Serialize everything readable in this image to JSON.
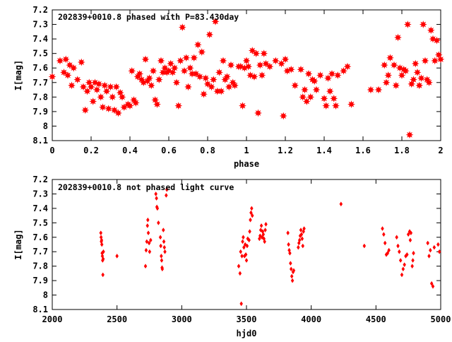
{
  "chart_data": [
    {
      "type": "scatter",
      "title": "202839+0010.8 phased with P=83.430day",
      "xlabel": "phase",
      "ylabel": "I[mag]",
      "xlim": [
        0,
        2
      ],
      "ylim": [
        7.2,
        8.1
      ],
      "y_inverted": true,
      "xticks": [
        "0",
        "0.2",
        "0.4",
        "0.6",
        "0.8",
        "1",
        "1.2",
        "1.4",
        "1.6",
        "1.8",
        "2"
      ],
      "yticks": [
        "7.2",
        "7.3",
        "7.4",
        "7.5",
        "7.6",
        "7.7",
        "7.8",
        "7.9",
        "8",
        "8.1"
      ],
      "grid": false,
      "marker": "star",
      "marker_color": "#ff0000",
      "points": [
        [
          0.0,
          7.66
        ],
        [
          0.04,
          7.55
        ],
        [
          0.06,
          7.63
        ],
        [
          0.07,
          7.54
        ],
        [
          0.08,
          7.65
        ],
        [
          0.09,
          7.58
        ],
        [
          0.1,
          7.72
        ],
        [
          0.11,
          7.6
        ],
        [
          0.13,
          7.68
        ],
        [
          0.15,
          7.56
        ],
        [
          0.16,
          7.73
        ],
        [
          0.17,
          7.89
        ],
        [
          0.18,
          7.76
        ],
        [
          0.19,
          7.7
        ],
        [
          0.2,
          7.73
        ],
        [
          0.21,
          7.83
        ],
        [
          0.22,
          7.7
        ],
        [
          0.23,
          7.75
        ],
        [
          0.24,
          7.71
        ],
        [
          0.25,
          7.8
        ],
        [
          0.26,
          7.87
        ],
        [
          0.27,
          7.72
        ],
        [
          0.28,
          7.76
        ],
        [
          0.29,
          7.88
        ],
        [
          0.3,
          7.73
        ],
        [
          0.31,
          7.8
        ],
        [
          0.32,
          7.89
        ],
        [
          0.33,
          7.73
        ],
        [
          0.34,
          7.91
        ],
        [
          0.35,
          7.77
        ],
        [
          0.36,
          7.8
        ],
        [
          0.37,
          7.87
        ],
        [
          0.39,
          7.85
        ],
        [
          0.4,
          7.86
        ],
        [
          0.41,
          7.62
        ],
        [
          0.42,
          7.82
        ],
        [
          0.43,
          7.84
        ],
        [
          0.44,
          7.66
        ],
        [
          0.45,
          7.64
        ],
        [
          0.46,
          7.68
        ],
        [
          0.47,
          7.7
        ],
        [
          0.48,
          7.54
        ],
        [
          0.49,
          7.69
        ],
        [
          0.5,
          7.67
        ],
        [
          0.51,
          7.72
        ],
        [
          0.52,
          7.62
        ],
        [
          0.53,
          7.82
        ],
        [
          0.54,
          7.85
        ],
        [
          0.55,
          7.68
        ],
        [
          0.56,
          7.55
        ],
        [
          0.57,
          7.63
        ],
        [
          0.58,
          7.6
        ],
        [
          0.59,
          7.63
        ],
        [
          0.6,
          7.62
        ],
        [
          0.61,
          7.57
        ],
        [
          0.62,
          7.63
        ],
        [
          0.63,
          7.6
        ],
        [
          0.64,
          7.7
        ],
        [
          0.65,
          7.86
        ],
        [
          0.66,
          7.55
        ],
        [
          0.67,
          7.32
        ],
        [
          0.68,
          7.62
        ],
        [
          0.69,
          7.53
        ],
        [
          0.7,
          7.73
        ],
        [
          0.71,
          7.6
        ],
        [
          0.72,
          7.64
        ],
        [
          0.73,
          7.53
        ],
        [
          0.74,
          7.64
        ],
        [
          0.75,
          7.44
        ],
        [
          0.76,
          7.66
        ],
        [
          0.77,
          7.49
        ],
        [
          0.78,
          7.78
        ],
        [
          0.79,
          7.67
        ],
        [
          0.8,
          7.71
        ],
        [
          0.81,
          7.37
        ],
        [
          0.82,
          7.73
        ],
        [
          0.83,
          7.68
        ],
        [
          0.84,
          7.28
        ],
        [
          0.85,
          7.76
        ],
        [
          0.86,
          7.63
        ],
        [
          0.87,
          7.76
        ],
        [
          0.88,
          7.55
        ],
        [
          0.89,
          7.68
        ],
        [
          0.9,
          7.66
        ],
        [
          0.91,
          7.73
        ],
        [
          0.92,
          7.58
        ],
        [
          0.93,
          7.7
        ],
        [
          0.94,
          7.72
        ],
        [
          0.96,
          7.59
        ],
        [
          0.97,
          7.59
        ],
        [
          0.98,
          7.86
        ],
        [
          0.99,
          7.6
        ],
        [
          1.0,
          7.55
        ],
        [
          1.01,
          7.59
        ],
        [
          1.02,
          7.65
        ],
        [
          1.03,
          7.48
        ],
        [
          1.04,
          7.66
        ],
        [
          1.05,
          7.5
        ],
        [
          1.06,
          7.91
        ],
        [
          1.07,
          7.58
        ],
        [
          1.08,
          7.65
        ],
        [
          1.09,
          7.5
        ],
        [
          1.1,
          7.57
        ],
        [
          1.12,
          7.59
        ],
        [
          1.15,
          7.55
        ],
        [
          1.18,
          7.57
        ],
        [
          1.19,
          7.93
        ],
        [
          1.2,
          7.54
        ],
        [
          1.21,
          7.62
        ],
        [
          1.23,
          7.61
        ],
        [
          1.25,
          7.72
        ],
        [
          1.28,
          7.61
        ],
        [
          1.29,
          7.8
        ],
        [
          1.3,
          7.75
        ],
        [
          1.31,
          7.83
        ],
        [
          1.32,
          7.64
        ],
        [
          1.33,
          7.8
        ],
        [
          1.34,
          7.68
        ],
        [
          1.35,
          7.69
        ],
        [
          1.36,
          7.75
        ],
        [
          1.38,
          7.65
        ],
        [
          1.4,
          7.81
        ],
        [
          1.41,
          7.86
        ],
        [
          1.42,
          7.67
        ],
        [
          1.43,
          7.76
        ],
        [
          1.44,
          7.64
        ],
        [
          1.45,
          7.81
        ],
        [
          1.46,
          7.86
        ],
        [
          1.47,
          7.65
        ],
        [
          1.5,
          7.62
        ],
        [
          1.52,
          7.59
        ],
        [
          1.54,
          7.85
        ],
        [
          1.64,
          7.75
        ],
        [
          1.68,
          7.75
        ],
        [
          1.71,
          7.58
        ],
        [
          1.72,
          7.7
        ],
        [
          1.73,
          7.65
        ],
        [
          1.74,
          7.53
        ],
        [
          1.76,
          7.58
        ],
        [
          1.77,
          7.72
        ],
        [
          1.78,
          7.39
        ],
        [
          1.79,
          7.6
        ],
        [
          1.8,
          7.65
        ],
        [
          1.81,
          7.61
        ],
        [
          1.82,
          7.62
        ],
        [
          1.83,
          7.3
        ],
        [
          1.84,
          8.06
        ],
        [
          1.85,
          7.71
        ],
        [
          1.86,
          7.68
        ],
        [
          1.87,
          7.57
        ],
        [
          1.88,
          7.63
        ],
        [
          1.89,
          7.72
        ],
        [
          1.9,
          7.67
        ],
        [
          1.91,
          7.3
        ],
        [
          1.92,
          7.55
        ],
        [
          1.93,
          7.68
        ],
        [
          1.94,
          7.7
        ],
        [
          1.95,
          7.34
        ],
        [
          1.96,
          7.4
        ],
        [
          1.97,
          7.55
        ],
        [
          1.98,
          7.41
        ],
        [
          1.99,
          7.51
        ],
        [
          2.0,
          7.54
        ],
        [
          2.01,
          7.72
        ]
      ]
    },
    {
      "type": "scatter",
      "title": "202839+0010.8 not phased light curve",
      "xlabel": "hjd0",
      "ylabel": "I[mag]",
      "xlim": [
        2000,
        5000
      ],
      "ylim": [
        7.2,
        8.1
      ],
      "y_inverted": true,
      "xticks": [
        "2000",
        "2500",
        "3000",
        "3500",
        "4000",
        "4500",
        "5000"
      ],
      "yticks": [
        "7.2",
        "7.3",
        "7.4",
        "7.5",
        "7.6",
        "7.7",
        "7.8",
        "7.9",
        "8",
        "8.1"
      ],
      "grid": false,
      "marker": "small-diamond",
      "marker_color": "#ff0000",
      "points": [
        [
          2375,
          7.57
        ],
        [
          2377,
          7.6
        ],
        [
          2379,
          7.63
        ],
        [
          2381,
          7.62
        ],
        [
          2383,
          7.65
        ],
        [
          2385,
          7.71
        ],
        [
          2387,
          7.73
        ],
        [
          2389,
          7.76
        ],
        [
          2391,
          7.86
        ],
        [
          2393,
          7.75
        ],
        [
          2395,
          7.7
        ],
        [
          2500,
          7.73
        ],
        [
          2720,
          7.8
        ],
        [
          2725,
          7.69
        ],
        [
          2730,
          7.63
        ],
        [
          2735,
          7.52
        ],
        [
          2738,
          7.48
        ],
        [
          2742,
          7.57
        ],
        [
          2748,
          7.64
        ],
        [
          2752,
          7.7
        ],
        [
          2760,
          7.62
        ],
        [
          2800,
          7.3
        ],
        [
          2805,
          7.33
        ],
        [
          2808,
          7.39
        ],
        [
          2812,
          7.4
        ],
        [
          2820,
          7.5
        ],
        [
          2835,
          7.6
        ],
        [
          2838,
          7.66
        ],
        [
          2842,
          7.73
        ],
        [
          2845,
          7.76
        ],
        [
          2848,
          7.81
        ],
        [
          2850,
          7.82
        ],
        [
          2858,
          7.55
        ],
        [
          2862,
          7.63
        ],
        [
          2866,
          7.67
        ],
        [
          2870,
          7.7
        ],
        [
          2880,
          7.31
        ],
        [
          2885,
          7.27
        ],
        [
          3440,
          7.8
        ],
        [
          3450,
          7.85
        ],
        [
          3455,
          7.7
        ],
        [
          3460,
          8.06
        ],
        [
          3465,
          7.73
        ],
        [
          3470,
          7.63
        ],
        [
          3475,
          7.6
        ],
        [
          3480,
          7.67
        ],
        [
          3485,
          7.73
        ],
        [
          3490,
          7.65
        ],
        [
          3495,
          7.72
        ],
        [
          3500,
          7.76
        ],
        [
          3505,
          7.66
        ],
        [
          3510,
          7.61
        ],
        [
          3520,
          7.62
        ],
        [
          3525,
          7.56
        ],
        [
          3530,
          7.48
        ],
        [
          3535,
          7.43
        ],
        [
          3540,
          7.4
        ],
        [
          3545,
          7.45
        ],
        [
          3600,
          7.61
        ],
        [
          3605,
          7.59
        ],
        [
          3610,
          7.55
        ],
        [
          3615,
          7.52
        ],
        [
          3620,
          7.6
        ],
        [
          3625,
          7.56
        ],
        [
          3630,
          7.58
        ],
        [
          3635,
          7.61
        ],
        [
          3640,
          7.63
        ],
        [
          3645,
          7.55
        ],
        [
          3650,
          7.51
        ],
        [
          3820,
          7.57
        ],
        [
          3825,
          7.65
        ],
        [
          3830,
          7.69
        ],
        [
          3835,
          7.71
        ],
        [
          3840,
          7.78
        ],
        [
          3845,
          7.82
        ],
        [
          3850,
          7.87
        ],
        [
          3855,
          7.9
        ],
        [
          3860,
          7.84
        ],
        [
          3865,
          7.83
        ],
        [
          3900,
          7.67
        ],
        [
          3905,
          7.64
        ],
        [
          3910,
          7.62
        ],
        [
          3915,
          7.59
        ],
        [
          3920,
          7.55
        ],
        [
          3925,
          7.58
        ],
        [
          3930,
          7.61
        ],
        [
          3935,
          7.66
        ],
        [
          3940,
          7.56
        ],
        [
          3945,
          7.54
        ],
        [
          4230,
          7.37
        ],
        [
          4410,
          7.66
        ],
        [
          4550,
          7.54
        ],
        [
          4560,
          7.58
        ],
        [
          4570,
          7.64
        ],
        [
          4580,
          7.72
        ],
        [
          4590,
          7.71
        ],
        [
          4600,
          7.69
        ],
        [
          4660,
          7.6
        ],
        [
          4670,
          7.66
        ],
        [
          4680,
          7.7
        ],
        [
          4690,
          7.76
        ],
        [
          4700,
          7.86
        ],
        [
          4710,
          7.82
        ],
        [
          4720,
          7.79
        ],
        [
          4730,
          7.73
        ],
        [
          4740,
          7.72
        ],
        [
          4750,
          7.58
        ],
        [
          4760,
          7.56
        ],
        [
          4765,
          7.62
        ],
        [
          4770,
          7.57
        ],
        [
          4780,
          7.8
        ],
        [
          4785,
          7.76
        ],
        [
          4790,
          7.71
        ],
        [
          4900,
          7.64
        ],
        [
          4910,
          7.73
        ],
        [
          4920,
          7.69
        ],
        [
          4930,
          7.92
        ],
        [
          4940,
          7.94
        ],
        [
          4950,
          7.67
        ],
        [
          4980,
          7.65
        ],
        [
          4990,
          7.7
        ]
      ]
    }
  ]
}
